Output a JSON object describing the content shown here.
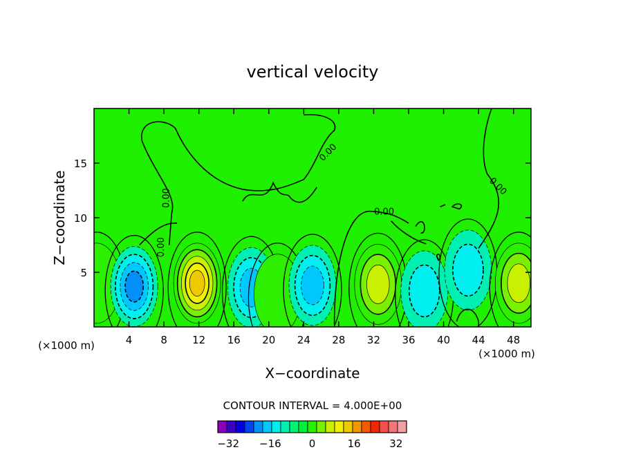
{
  "chart_data": {
    "type": "heatmap",
    "title": "vertical velocity",
    "xlabel": "X−coordinate",
    "ylabel": "Z−coordinate",
    "x_unit": "(×1000 m)",
    "y_unit": "(×1000 m)",
    "xlim": [
      0,
      50
    ],
    "ylim": [
      0,
      20
    ],
    "x_ticks": [
      4,
      8,
      12,
      16,
      20,
      24,
      28,
      32,
      36,
      40,
      44,
      48
    ],
    "y_ticks": [
      5,
      10,
      15
    ],
    "x_tick_labels": [
      "4",
      "8",
      "12",
      "16",
      "20",
      "24",
      "28",
      "32",
      "36",
      "40",
      "44",
      "48"
    ],
    "y_tick_labels": [
      "5",
      "10",
      "15"
    ],
    "contour_interval_text": "CONTOUR INTERVAL = 4.000E+00",
    "contour_interval": 4,
    "zero_contour_labels": [
      "0.00",
      "0.00",
      "0.00",
      "0.00",
      "0.00"
    ],
    "colorbar": {
      "min": -36,
      "max": 36,
      "step": 4,
      "tick_values": [
        -32,
        -16,
        0,
        16,
        32
      ],
      "tick_labels": [
        "−32",
        "−16",
        "0",
        "16",
        "32"
      ],
      "colors": [
        "#8a00b8",
        "#3a00c8",
        "#0000e0",
        "#0046f0",
        "#0090f8",
        "#00c8ff",
        "#00f0f0",
        "#00f0b4",
        "#00f078",
        "#00f03c",
        "#2cf000",
        "#78f000",
        "#c8f000",
        "#f0f000",
        "#f0c800",
        "#f09600",
        "#f05a00",
        "#f02800",
        "#f05050",
        "#f07878",
        "#f0a0a0"
      ]
    },
    "cells": [
      {
        "name": "updraft-cell",
        "x": 0.3,
        "z": 4.0,
        "peak": 6
      },
      {
        "name": "downdraft-cell",
        "x": 4.6,
        "z": 3.7,
        "peak": -16
      },
      {
        "name": "updraft-cell",
        "x": 11.8,
        "z": 4.0,
        "peak": 20
      },
      {
        "name": "downdraft-cell",
        "x": 18.0,
        "z": 3.6,
        "peak": -12
      },
      {
        "name": "updraft-cell",
        "x": 21.0,
        "z": 3.0,
        "peak": 4
      },
      {
        "name": "downdraft-cell",
        "x": 25.0,
        "z": 3.8,
        "peak": -12
      },
      {
        "name": "updraft-cell",
        "x": 32.5,
        "z": 3.9,
        "peak": 14
      },
      {
        "name": "downdraft-cell",
        "x": 37.8,
        "z": 3.3,
        "peak": -8
      },
      {
        "name": "downdraft-cell",
        "x": 42.8,
        "z": 5.2,
        "peak": -8
      },
      {
        "name": "updraft-cell",
        "x": 48.6,
        "z": 4.0,
        "peak": 14
      }
    ]
  }
}
